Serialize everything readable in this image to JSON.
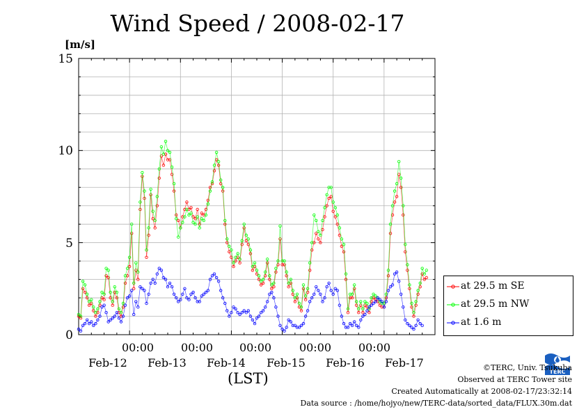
{
  "title": "Wind Speed / 2008-02-17",
  "y_unit": "[m/s]",
  "x_axis_label": "(LST)",
  "time_labels": [
    "00:00",
    "00:00",
    "00:00",
    "00:00",
    "00:00"
  ],
  "date_labels": [
    "Feb-12",
    "Feb-13",
    "Feb-14",
    "Feb-15",
    "Feb-16",
    "Feb-17"
  ],
  "footer": {
    "copyright": "©TERC, Univ. Tsukuba",
    "observed": "Observed at TERC Tower site",
    "created": "Created Automatically at 2008-02-17/23:32:14",
    "source": "Data source : /home/hojyo/new/TERC-data/sorted_data/FLUX.30m.dat"
  },
  "logo_text": "TERC",
  "chart_data": {
    "type": "line",
    "title": "Wind Speed / 2008-02-17",
    "ylabel": "[m/s]",
    "xlabel": "(LST)",
    "ylim": [
      0,
      15
    ],
    "yticks": [
      0,
      5,
      10,
      15
    ],
    "xlim": [
      "2008-02-11 00:00",
      "2008-02-18 00:00"
    ],
    "grid": true,
    "legend_position": "right",
    "x_step_minutes": 60,
    "x_start": "2008-02-11 00:00",
    "series": [
      {
        "name": "at 29.5 m SE",
        "color": "#ff0000",
        "values": [
          1.0,
          0.9,
          2.5,
          2.3,
          2.0,
          1.6,
          1.7,
          1.3,
          1.0,
          1.2,
          1.6,
          2.0,
          1.9,
          3.2,
          3.1,
          2.0,
          1.6,
          2.3,
          2.0,
          1.2,
          1.0,
          1.5,
          2.8,
          3.2,
          3.7,
          5.5,
          2.5,
          3.5,
          3.0,
          6.8,
          8.6,
          7.4,
          4.2,
          5.4,
          7.6,
          6.3,
          5.8,
          7.0,
          8.5,
          9.7,
          9.2,
          9.8,
          9.5,
          9.5,
          8.7,
          7.8,
          6.5,
          6.2,
          5.8,
          6.4,
          6.8,
          7.2,
          6.8,
          6.9,
          6.4,
          6.3,
          6.8,
          6.0,
          6.6,
          6.5,
          6.8,
          7.3,
          8.0,
          8.2,
          8.9,
          9.5,
          9.2,
          8.2,
          7.8,
          6.0,
          5.0,
          4.5,
          4.2,
          3.7,
          4.0,
          4.2,
          3.9,
          4.9,
          5.8,
          5.1,
          4.9,
          4.4,
          3.5,
          3.7,
          3.3,
          3.0,
          2.7,
          2.8,
          3.2,
          3.9,
          3.0,
          2.5,
          2.6,
          3.4,
          3.8,
          5.2,
          3.8,
          3.8,
          3.2,
          2.6,
          2.8,
          2.2,
          1.8,
          2.0,
          1.5,
          1.3,
          2.5,
          1.9,
          2.3,
          3.5,
          4.6,
          5.0,
          5.5,
          5.2,
          5.0,
          5.7,
          6.4,
          7.0,
          7.4,
          7.5,
          6.7,
          6.4,
          6.0,
          5.4,
          4.8,
          4.5,
          3.0,
          1.2,
          2.0,
          2.0,
          2.5,
          1.6,
          1.2,
          1.6,
          1.2,
          1.6,
          1.5,
          1.2,
          1.8,
          2.0,
          1.9,
          1.8,
          1.6,
          1.5,
          1.5,
          2.0,
          3.2,
          5.5,
          6.5,
          7.2,
          7.5,
          8.7,
          8.0,
          6.5,
          4.5,
          3.5,
          2.5,
          1.5,
          1.0,
          1.6,
          2.2,
          2.6,
          3.3,
          3.0,
          3.1
        ]
      },
      {
        "name": "at 29.5 m NW",
        "color": "#00ff00",
        "values": [
          1.1,
          1.0,
          2.9,
          2.7,
          2.2,
          1.8,
          1.9,
          1.5,
          1.2,
          1.4,
          1.8,
          2.3,
          2.2,
          3.6,
          3.5,
          2.3,
          1.8,
          2.6,
          2.3,
          1.4,
          1.2,
          1.7,
          3.2,
          3.6,
          4.2,
          6.0,
          2.8,
          3.9,
          3.4,
          7.2,
          8.8,
          7.8,
          4.6,
          5.8,
          7.9,
          6.7,
          6.2,
          7.5,
          9.0,
          10.2,
          9.8,
          10.5,
          10.0,
          9.9,
          9.1,
          8.2,
          6.3,
          5.3,
          5.8,
          6.1,
          6.4,
          6.8,
          6.5,
          6.6,
          6.1,
          6.0,
          6.4,
          5.8,
          6.3,
          6.2,
          6.5,
          7.1,
          7.8,
          8.3,
          9.2,
          9.9,
          9.4,
          8.4,
          8.0,
          6.2,
          5.2,
          4.8,
          4.6,
          3.9,
          4.2,
          4.4,
          4.1,
          5.1,
          6.0,
          5.4,
          5.2,
          4.6,
          3.7,
          3.9,
          3.5,
          3.2,
          2.9,
          3.0,
          3.4,
          4.1,
          3.2,
          2.7,
          2.8,
          3.6,
          4.0,
          5.9,
          4.0,
          4.0,
          3.4,
          2.8,
          3.0,
          2.4,
          2.0,
          2.2,
          1.7,
          1.5,
          2.7,
          2.1,
          2.5,
          3.9,
          5.0,
          6.5,
          6.2,
          5.6,
          5.4,
          6.2,
          6.9,
          7.6,
          8.0,
          8.0,
          7.2,
          6.9,
          6.5,
          5.8,
          5.2,
          4.9,
          3.3,
          1.4,
          2.2,
          2.2,
          2.7,
          1.8,
          1.4,
          1.8,
          1.4,
          1.8,
          1.7,
          1.4,
          2.0,
          2.2,
          2.1,
          2.0,
          1.8,
          1.7,
          1.7,
          2.2,
          3.5,
          6.0,
          7.0,
          7.8,
          8.2,
          9.4,
          8.5,
          7.0,
          4.9,
          3.8,
          2.7,
          1.7,
          1.2,
          1.8,
          2.4,
          2.8,
          3.6,
          3.3,
          3.5
        ]
      },
      {
        "name": "at 1.6 m",
        "color": "#0000ff",
        "values": [
          0.3,
          0.2,
          0.5,
          0.6,
          0.8,
          0.6,
          0.7,
          0.5,
          0.6,
          0.8,
          1.0,
          1.5,
          1.6,
          1.2,
          0.7,
          0.8,
          0.9,
          1.0,
          1.2,
          0.9,
          0.7,
          1.0,
          1.6,
          2.0,
          2.1,
          2.4,
          1.1,
          1.8,
          1.5,
          2.6,
          2.5,
          2.4,
          1.7,
          2.2,
          2.8,
          3.0,
          2.8,
          3.3,
          3.6,
          3.5,
          3.1,
          3.0,
          2.6,
          2.8,
          2.6,
          2.2,
          2.0,
          1.8,
          1.9,
          2.2,
          2.5,
          2.0,
          1.9,
          2.2,
          2.3,
          2.0,
          1.8,
          1.8,
          2.1,
          2.2,
          2.3,
          2.4,
          3.0,
          3.2,
          3.3,
          3.1,
          2.9,
          2.4,
          2.0,
          1.7,
          1.3,
          1.0,
          1.2,
          1.5,
          1.4,
          1.2,
          1.1,
          1.2,
          1.3,
          1.2,
          1.3,
          1.0,
          0.8,
          0.6,
          0.9,
          1.0,
          1.2,
          1.3,
          1.5,
          1.8,
          2.2,
          2.3,
          2.0,
          1.5,
          1.0,
          0.5,
          0.3,
          0.2,
          0.4,
          0.8,
          0.7,
          0.5,
          0.5,
          0.4,
          0.4,
          0.5,
          0.6,
          1.0,
          1.3,
          1.8,
          2.0,
          2.2,
          2.6,
          2.4,
          2.2,
          1.8,
          2.0,
          2.6,
          2.8,
          2.4,
          2.2,
          2.5,
          2.4,
          1.6,
          1.0,
          0.6,
          0.4,
          0.4,
          0.6,
          0.5,
          0.7,
          0.5,
          0.4,
          0.8,
          1.0,
          1.1,
          1.3,
          1.5,
          1.6,
          1.7,
          1.8,
          2.0,
          1.9,
          1.8,
          1.5,
          1.8,
          2.4,
          2.6,
          2.7,
          3.3,
          3.4,
          2.9,
          2.2,
          1.5,
          0.8,
          0.6,
          0.5,
          0.4,
          0.3,
          0.5,
          0.8,
          0.6,
          0.5
        ]
      }
    ]
  }
}
